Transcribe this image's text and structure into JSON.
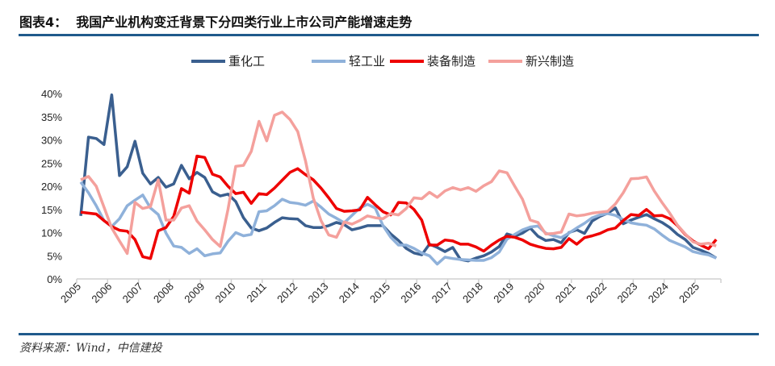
{
  "header": {
    "title": "图表4：  我国产业机构变迁背景下分四类行业上市公司产能增速走势"
  },
  "footer": {
    "source": "资料来源：Wind，中信建投"
  },
  "chart_data": {
    "type": "line",
    "title": "",
    "xlabel": "",
    "ylabel": "",
    "ylim": [
      0,
      0.4
    ],
    "y_ticks": [
      "0%",
      "5%",
      "10%",
      "15%",
      "20%",
      "25%",
      "30%",
      "35%",
      "40%"
    ],
    "x_tick_labels": [
      "2005",
      "2006",
      "2007",
      "2008",
      "2009",
      "2010",
      "2011",
      "2012",
      "2013",
      "2014",
      "2015",
      "2016",
      "2017",
      "2018",
      "2019",
      "2020",
      "2021",
      "2022",
      "2023",
      "2024",
      "2025"
    ],
    "x_frequency": "quarterly",
    "grid": false,
    "legend": "top",
    "series": [
      {
        "name": "重化工",
        "color": "#3a5f8f",
        "values": [
          13.6,
          30.6,
          30.3,
          29,
          39.7,
          22.3,
          24.2,
          29.7,
          22.8,
          20.5,
          21.9,
          19.8,
          20.5,
          24.5,
          21.6,
          23,
          21.9,
          18.8,
          17.9,
          18.3,
          16.7,
          13.2,
          11,
          10.4,
          11,
          12.2,
          13.2,
          13,
          12.9,
          11.5,
          11.1,
          11.1,
          11.5,
          12.2,
          11.7,
          10.6,
          11,
          11.5,
          11.5,
          11.5,
          9.7,
          8.3,
          6.6,
          5.6,
          5.2,
          7.5,
          6.8,
          5.9,
          6.8,
          4.2,
          3.9,
          4.5,
          5,
          5.8,
          7,
          9.7,
          9.2,
          9.9,
          11,
          9.2,
          8.3,
          8.5,
          7.8,
          10,
          10.6,
          9.8,
          12.5,
          13.5,
          14.2,
          15.3,
          11.9,
          12.7,
          13.3,
          13.9,
          13,
          12.2,
          11.1,
          9.6,
          8.5,
          6.8,
          6.2,
          5.5,
          4.5
        ]
      },
      {
        "name": "轻工业",
        "color": "#8fb1da",
        "values": [
          20.9,
          18.6,
          15.8,
          12.6,
          11.3,
          13,
          15.8,
          17,
          18.1,
          15.3,
          13.9,
          9.9,
          7.1,
          6.8,
          5.5,
          6.5,
          5,
          5.4,
          5.6,
          8.1,
          10,
          9.3,
          9.6,
          14.5,
          14.7,
          15.8,
          17.2,
          16.5,
          16.3,
          15.9,
          16.8,
          15.5,
          14,
          13.1,
          12.1,
          13.7,
          15.3,
          16.1,
          15.3,
          11.5,
          9,
          7.3,
          7.3,
          6.6,
          5.6,
          5,
          3.2,
          4.7,
          4.4,
          4.2,
          4.1,
          4,
          4,
          4.6,
          5.8,
          8.6,
          9.6,
          10.6,
          11.2,
          11.4,
          9.9,
          9.3,
          8.9,
          9.9,
          11,
          12,
          13.2,
          13.8,
          14.1,
          13.7,
          12.8,
          12.1,
          11.8,
          11.6,
          10.8,
          9.5,
          8.3,
          7.6,
          6.9,
          5.9,
          5.5,
          5.2,
          4.5
        ]
      },
      {
        "name": "装备制造",
        "color": "#ee0000",
        "values": [
          14.4,
          14.2,
          14,
          12.6,
          11.3,
          10.5,
          10.3,
          8.5,
          4.8,
          4.4,
          10.4,
          11.1,
          13.5,
          19.5,
          18.5,
          26.5,
          26.2,
          22.6,
          22,
          20,
          18.4,
          18.7,
          16.3,
          18.4,
          18.2,
          19.6,
          21.3,
          23,
          23.8,
          22.5,
          21.4,
          19.6,
          17.5,
          15.2,
          14.6,
          14.7,
          14.9,
          17.6,
          16,
          14.5,
          13.8,
          16.5,
          16.4,
          15,
          12.7,
          7.3,
          7.3,
          8.4,
          8.2,
          7.5,
          7.5,
          6.9,
          6,
          7.3,
          8.4,
          9.2,
          9,
          8.4,
          7.5,
          7,
          6.6,
          6.5,
          6.8,
          8.7,
          7.5,
          8.9,
          9.3,
          9.8,
          10.6,
          11,
          12.6,
          13.9,
          13.7,
          15,
          13.6,
          13.7,
          13,
          11.5,
          9.6,
          8.2,
          7.3,
          6.5,
          8.5
        ]
      },
      {
        "name": "新兴制造",
        "color": "#f4a09c",
        "values": [
          21.4,
          22.1,
          20,
          15.5,
          11,
          8.2,
          5.5,
          16.5,
          15.2,
          15.6,
          21.4,
          12.7,
          12.7,
          15.3,
          15.8,
          12.5,
          10.6,
          8.5,
          7,
          15,
          24.3,
          24.5,
          27.5,
          34,
          29.8,
          35.3,
          36,
          34.4,
          31.8,
          25.5,
          17.5,
          12.6,
          9.5,
          9,
          12.3,
          11.8,
          12.6,
          13.6,
          13.2,
          13,
          14.1,
          13.8,
          15.2,
          17.5,
          17.3,
          18.7,
          17.6,
          19,
          19.7,
          19.2,
          19.7,
          18.9,
          20.1,
          21,
          23.3,
          22.9,
          20,
          17.2,
          12.7,
          12.2,
          9.7,
          9.8,
          10.1,
          14,
          13.6,
          13.8,
          14.2,
          14.4,
          14.6,
          16.2,
          18.6,
          21.6,
          21.7,
          22,
          19,
          16.5,
          14.2,
          11.6,
          9.7,
          8,
          7.5,
          7.7,
          7.1
        ]
      }
    ]
  }
}
